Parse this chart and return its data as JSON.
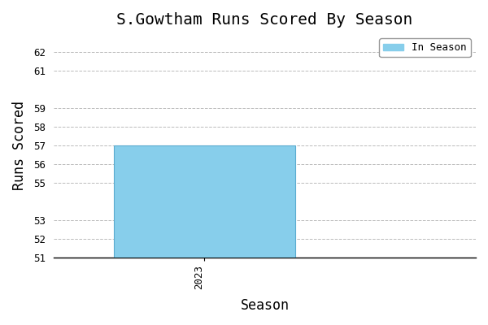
{
  "title": "S.Gowtham Runs Scored By Season",
  "xlabel": "Season",
  "ylabel": "Runs Scored",
  "categories": [
    "2023"
  ],
  "values": [
    57
  ],
  "bar_color": "#87CEEB",
  "legend_label": "In Season",
  "ylim": [
    51,
    63
  ],
  "yticks": [
    51,
    52,
    53,
    55,
    56,
    57,
    58,
    59,
    61,
    62
  ],
  "background_color": "#ffffff",
  "title_fontsize": 14,
  "axis_label_fontsize": 12,
  "tick_fontsize": 9,
  "grid_color": "#bbbbbb",
  "grid_linestyle": "--",
  "bar_width": 0.6,
  "bar_edgecolor": "#5aabcf",
  "bar_bottom": 51,
  "bar_value": 57
}
